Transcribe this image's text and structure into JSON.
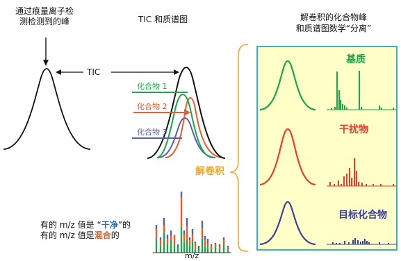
{
  "titles": {
    "left_line1": "通过痕量离子检",
    "left_line2": "测检测到的峰",
    "middle": "TIC 和质谱图",
    "right_line1": "解卷积的化合物峰",
    "right_line2": "和质谱图数学“分离”"
  },
  "tic_label": "TIC",
  "compounds": [
    {
      "label": "化合物 1",
      "color": "#1aa64a"
    },
    {
      "label": "化合物 2",
      "color": "#ee5a2a"
    },
    {
      "label": "化合物 3",
      "color": "#5560a8"
    }
  ],
  "deconvolution_label": "解卷积",
  "panels": [
    {
      "label": "基质",
      "color": "#1aa64a"
    },
    {
      "label": "干扰物",
      "color": "#ee3a2a"
    },
    {
      "label": "目标化合物",
      "color": "#3a3fa0"
    }
  ],
  "note": {
    "line1_prefix": "有的 m/z 值是 “",
    "line1_highlight": "干净",
    "line1_suffix": "”的",
    "line2_prefix": "有的 m/z 值是",
    "line2_highlight": "混合",
    "line2_suffix": "的",
    "clean_color": "#1a6fd0",
    "mixed_color": "#e85d20"
  },
  "xaxis_label": "m/z",
  "colors": {
    "panel_bg": "#ffffc8",
    "panel_border": "#36b3c8",
    "brace": "#f5a828"
  }
}
